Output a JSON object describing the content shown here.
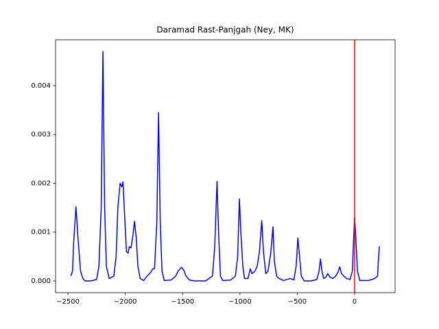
{
  "chart_data": {
    "type": "line",
    "title": "Daramad Rast-Panjgah (Ney, MK)",
    "x": [
      -2475,
      -2460,
      -2450,
      -2430,
      -2410,
      -2390,
      -2370,
      -2350,
      -2300,
      -2250,
      -2230,
      -2210,
      -2195,
      -2180,
      -2165,
      -2140,
      -2100,
      -2080,
      -2065,
      -2045,
      -2030,
      -2020,
      -2005,
      -1990,
      -1975,
      -1965,
      -1950,
      -1935,
      -1920,
      -1905,
      -1890,
      -1870,
      -1840,
      -1810,
      -1780,
      -1760,
      -1745,
      -1725,
      -1710,
      -1695,
      -1680,
      -1660,
      -1600,
      -1560,
      -1540,
      -1510,
      -1490,
      -1470,
      -1440,
      -1400,
      -1300,
      -1240,
      -1220,
      -1200,
      -1185,
      -1170,
      -1150,
      -1080,
      -1040,
      -1020,
      -1005,
      -990,
      -975,
      -960,
      -930,
      -910,
      -895,
      -870,
      -850,
      -830,
      -810,
      -795,
      -775,
      -755,
      -730,
      -712,
      -700,
      -680,
      -660,
      -620,
      -560,
      -530,
      -510,
      -495,
      -480,
      -465,
      -440,
      -380,
      -330,
      -310,
      -298,
      -285,
      -270,
      -250,
      -235,
      -215,
      -190,
      -165,
      -145,
      -130,
      -115,
      -95,
      -70,
      -40,
      -20,
      -8,
      0,
      10,
      25,
      45,
      120,
      150,
      175,
      200,
      207,
      215
    ],
    "series": [
      {
        "color": "#0000ff",
        "values": [
          0.0001,
          0.0002,
          0.0008,
          0.00152,
          0.0008,
          0.0002,
          5e-05,
          0,
          0,
          3e-05,
          0.0003,
          0.0015,
          0.0047,
          0.0015,
          0.0003,
          5e-05,
          0.0001,
          0.0005,
          0.0015,
          0.002,
          0.00193,
          0.00203,
          0.0013,
          0.0006,
          0.00057,
          0.0007,
          0.00068,
          0.0009,
          0.00122,
          0.0009,
          0.0003,
          5e-05,
          1e-05,
          0.0001,
          0.00017,
          0.00025,
          0.00025,
          0.0012,
          0.00345,
          0.0012,
          0.0002,
          1e-05,
          2e-05,
          0.0001,
          0.0002,
          0.00028,
          0.00022,
          0.0001,
          2e-05,
          0,
          0,
          0.0001,
          0.0007,
          0.00204,
          0.0009,
          0.0001,
          1e-05,
          2e-05,
          0.0001,
          0.0005,
          0.00168,
          0.0009,
          0.0003,
          5e-05,
          5e-05,
          0.00025,
          0.00015,
          0.0002,
          0.0003,
          0.0006,
          0.00124,
          0.0006,
          0.00015,
          0.0002,
          0.0006,
          0.00111,
          0.0004,
          0.0001,
          5e-05,
          1e-05,
          5e-05,
          2e-05,
          0.0003,
          0.00088,
          0.0005,
          0.0001,
          0,
          0,
          3e-05,
          0.0002,
          0.00045,
          0.0002,
          5e-05,
          8e-05,
          0.00015,
          8e-05,
          5e-05,
          0.0001,
          0.00018,
          0.00029,
          0.00015,
          0.0001,
          5e-05,
          3e-05,
          0.0002,
          0.0009,
          0.0013,
          0.0009,
          0.0002,
          1e-05,
          1e-05,
          3e-05,
          5e-05,
          0.0001,
          0.0004,
          0.00071
        ]
      }
    ],
    "vline": {
      "x": 0,
      "color": "#ff0000"
    },
    "xlim": [
      -2608,
      353
    ],
    "ylim": [
      -0.00024,
      0.00494
    ],
    "xticks": [
      {
        "value": -2500,
        "label": "−2500"
      },
      {
        "value": -2000,
        "label": "−2000"
      },
      {
        "value": -1500,
        "label": "−1500"
      },
      {
        "value": -1000,
        "label": "−1000"
      },
      {
        "value": -500,
        "label": "−500"
      },
      0
    ],
    "yticks": [
      {
        "value": 0,
        "label": "0.000"
      },
      {
        "value": 0.001,
        "label": "0.001"
      },
      {
        "value": 0.002,
        "label": "0.002"
      },
      {
        "value": 0.003,
        "label": "0.003"
      },
      {
        "value": 0.004,
        "label": "0.004"
      }
    ]
  }
}
